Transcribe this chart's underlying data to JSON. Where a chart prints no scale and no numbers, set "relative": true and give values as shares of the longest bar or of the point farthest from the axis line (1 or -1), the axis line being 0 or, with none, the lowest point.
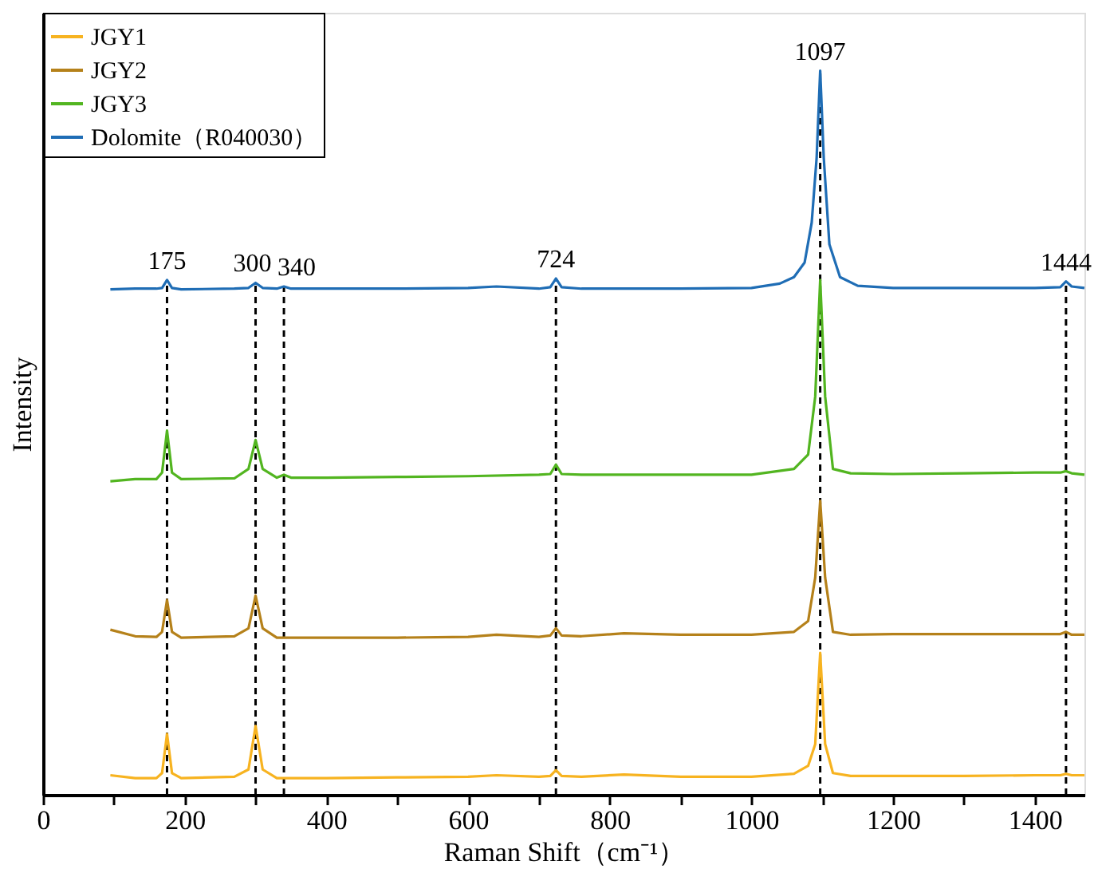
{
  "chart_data": {
    "type": "line",
    "relative": true,
    "xlabel": "Raman Shift（cm⁻¹）",
    "ylabel": "Intensity",
    "xlim": [
      0,
      1470
    ],
    "xticks": [
      0,
      {
        "value": 100,
        "label": null
      },
      200,
      {
        "value": 300,
        "label": null
      },
      400,
      {
        "value": 500,
        "label": null
      },
      600,
      {
        "value": 700,
        "label": null
      },
      800,
      {
        "value": 900,
        "label": null
      },
      1000,
      {
        "value": 1100,
        "label": null
      },
      1200,
      {
        "value": 1300,
        "label": null
      },
      1400
    ],
    "tick_labels": "x",
    "grid": false,
    "legend": "top left",
    "marker": "none",
    "line_style": "solid",
    "series": [
      {
        "name": "JGY1",
        "color": "#f7b320",
        "x": [
          95,
          130,
          160,
          168,
          175,
          182,
          195,
          270,
          290,
          300,
          310,
          330,
          400,
          500,
          600,
          640,
          700,
          716,
          724,
          732,
          760,
          820,
          900,
          1000,
          1060,
          1080,
          1090,
          1097,
          1104,
          1115,
          1140,
          1200,
          1300,
          1400,
          1436,
          1444,
          1452,
          1470
        ],
        "values": [
          0.027,
          0.023,
          0.023,
          0.03,
          0.084,
          0.03,
          0.023,
          0.025,
          0.035,
          0.095,
          0.035,
          0.023,
          0.023,
          0.024,
          0.025,
          0.027,
          0.025,
          0.026,
          0.034,
          0.026,
          0.025,
          0.028,
          0.025,
          0.025,
          0.029,
          0.04,
          0.07,
          0.196,
          0.07,
          0.03,
          0.026,
          0.026,
          0.026,
          0.027,
          0.027,
          0.029,
          0.027,
          0.027
        ]
      },
      {
        "name": "JGY2",
        "color": "#b5811a",
        "x": [
          95,
          130,
          160,
          168,
          175,
          182,
          195,
          270,
          290,
          300,
          310,
          330,
          400,
          500,
          600,
          640,
          700,
          716,
          724,
          732,
          760,
          820,
          900,
          1000,
          1060,
          1080,
          1090,
          1097,
          1104,
          1115,
          1140,
          1200,
          1300,
          1400,
          1436,
          1444,
          1452,
          1470
        ],
        "values": [
          0.228,
          0.219,
          0.218,
          0.225,
          0.269,
          0.225,
          0.217,
          0.219,
          0.23,
          0.275,
          0.23,
          0.217,
          0.217,
          0.217,
          0.218,
          0.221,
          0.218,
          0.22,
          0.23,
          0.22,
          0.219,
          0.223,
          0.221,
          0.221,
          0.225,
          0.24,
          0.3,
          0.406,
          0.3,
          0.225,
          0.221,
          0.222,
          0.222,
          0.222,
          0.222,
          0.225,
          0.221,
          0.221
        ]
      },
      {
        "name": "JGY3",
        "color": "#52b520",
        "x": [
          95,
          130,
          160,
          168,
          175,
          182,
          195,
          270,
          290,
          300,
          310,
          330,
          340,
          350,
          400,
          500,
          600,
          700,
          716,
          724,
          732,
          760,
          900,
          1000,
          1060,
          1080,
          1090,
          1097,
          1104,
          1115,
          1140,
          1200,
          1300,
          1400,
          1436,
          1444,
          1452,
          1470
        ],
        "values": [
          0.433,
          0.436,
          0.436,
          0.445,
          0.503,
          0.445,
          0.436,
          0.437,
          0.45,
          0.49,
          0.45,
          0.438,
          0.442,
          0.438,
          0.438,
          0.439,
          0.44,
          0.442,
          0.443,
          0.456,
          0.443,
          0.442,
          0.442,
          0.442,
          0.45,
          0.47,
          0.55,
          0.711,
          0.55,
          0.45,
          0.444,
          0.443,
          0.444,
          0.445,
          0.445,
          0.447,
          0.444,
          0.442
        ]
      },
      {
        "name": "Dolomite（R040030）",
        "color": "#1f6db5",
        "x": [
          95,
          130,
          160,
          168,
          175,
          182,
          195,
          270,
          290,
          300,
          310,
          330,
          340,
          350,
          400,
          500,
          600,
          640,
          700,
          716,
          724,
          732,
          760,
          900,
          1000,
          1040,
          1060,
          1075,
          1085,
          1092,
          1097,
          1102,
          1110,
          1125,
          1150,
          1200,
          1300,
          1400,
          1436,
          1444,
          1452,
          1470
        ],
        "values": [
          0.698,
          0.699,
          0.699,
          0.7,
          0.711,
          0.7,
          0.698,
          0.699,
          0.7,
          0.707,
          0.7,
          0.699,
          0.702,
          0.699,
          0.699,
          0.699,
          0.7,
          0.702,
          0.699,
          0.701,
          0.713,
          0.701,
          0.699,
          0.699,
          0.7,
          0.706,
          0.715,
          0.735,
          0.79,
          0.88,
          1.0,
          0.88,
          0.76,
          0.715,
          0.703,
          0.7,
          0.7,
          0.7,
          0.701,
          0.709,
          0.702,
          0.7
        ]
      }
    ],
    "ref_lines": [
      {
        "axis": "x",
        "value": 175,
        "label": "175",
        "color": "#000000",
        "line_style": "dashed"
      },
      {
        "axis": "x",
        "value": 300,
        "label": "300",
        "color": "#000000",
        "line_style": "dashed"
      },
      {
        "axis": "x",
        "value": 340,
        "label": "340",
        "color": "#000000",
        "line_style": "dashed"
      },
      {
        "axis": "x",
        "value": 724,
        "label": "724",
        "color": "#000000",
        "line_style": "dashed"
      },
      {
        "axis": "x",
        "value": 1097,
        "label": "1097",
        "color": "#000000",
        "line_style": "dashed"
      },
      {
        "axis": "x",
        "value": 1444,
        "label": "1444",
        "color": "#000000",
        "line_style": "dashed"
      }
    ]
  }
}
